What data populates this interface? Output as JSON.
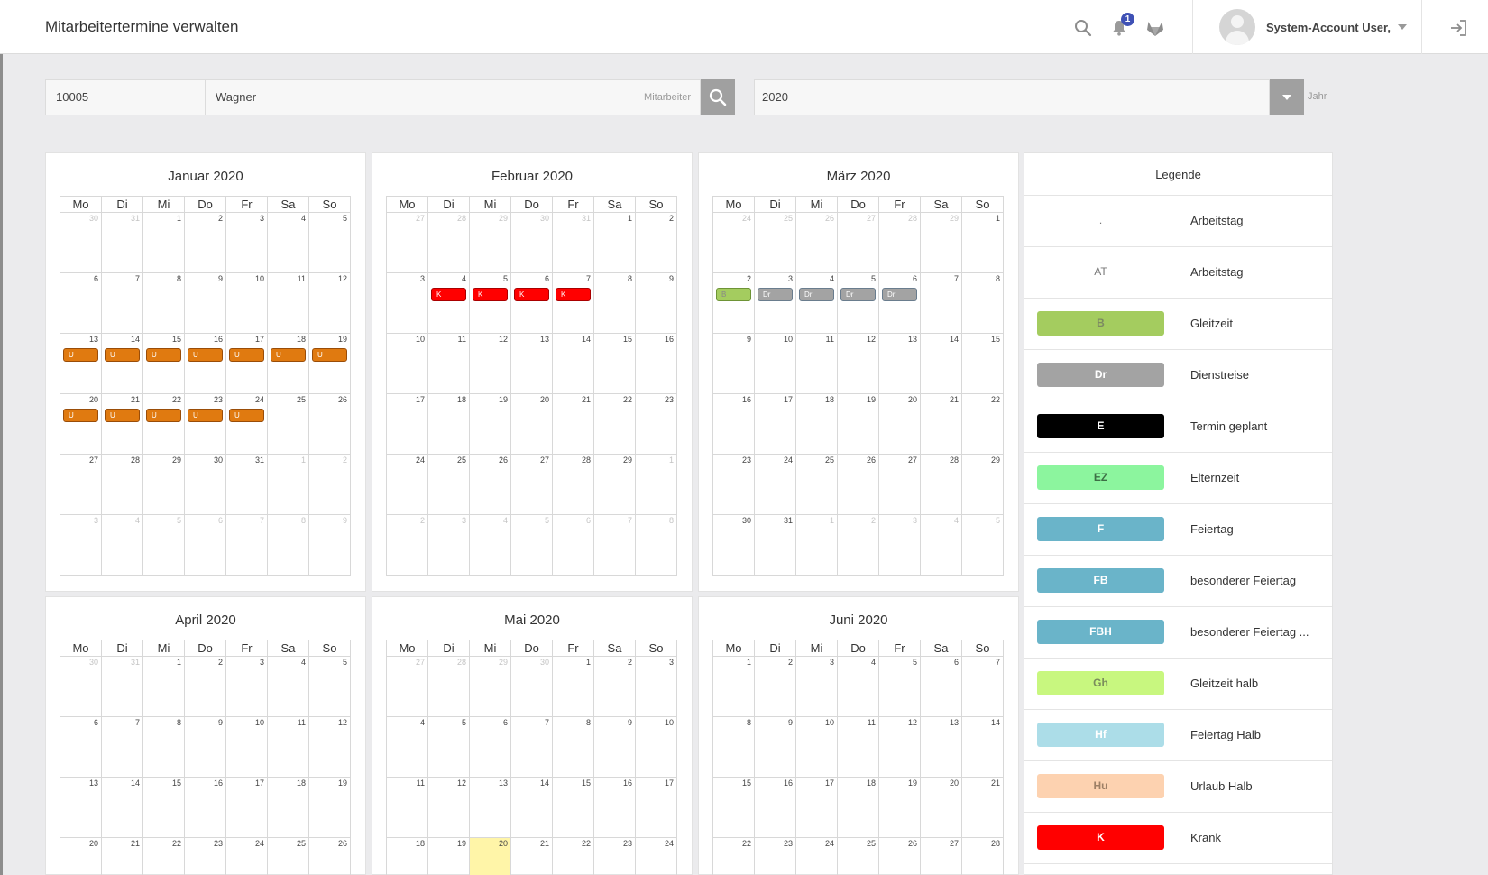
{
  "header": {
    "title": "Mitarbeitertermine verwalten",
    "notification_count": "1",
    "user_name": "System-Account User,"
  },
  "icons": {
    "search": "search-icon",
    "bell": "bell-icon",
    "brand": "fox-logo-icon",
    "user_menu_caret": "chevron-down-icon",
    "logout": "logout-icon"
  },
  "filter": {
    "employee_id": "10005",
    "employee_name": "Wagner",
    "employee_hint": "Mitarbeiter",
    "year": "2020",
    "year_hint": "Jahr"
  },
  "weekdays": [
    "Mo",
    "Di",
    "Mi",
    "Do",
    "Fr",
    "Sa",
    "So"
  ],
  "colors": {
    "accent_badge": "#3f51b5",
    "U": "#e07a10",
    "K": "#ff0000",
    "B": "#a4cc5f",
    "Dr": "#a3a3a3",
    "today": "#fff5a8"
  },
  "months": [
    {
      "title": "Januar 2020",
      "weeks": [
        [
          {
            "d": "30",
            "o": true
          },
          {
            "d": "31",
            "o": true
          },
          {
            "d": "1"
          },
          {
            "d": "2"
          },
          {
            "d": "3"
          },
          {
            "d": "4"
          },
          {
            "d": "5"
          }
        ],
        [
          {
            "d": "6"
          },
          {
            "d": "7"
          },
          {
            "d": "8"
          },
          {
            "d": "9"
          },
          {
            "d": "10"
          },
          {
            "d": "11"
          },
          {
            "d": "12"
          }
        ],
        [
          {
            "d": "13",
            "e": "U"
          },
          {
            "d": "14",
            "e": "U"
          },
          {
            "d": "15",
            "e": "U"
          },
          {
            "d": "16",
            "e": "U"
          },
          {
            "d": "17",
            "e": "U"
          },
          {
            "d": "18",
            "e": "U"
          },
          {
            "d": "19",
            "e": "U"
          }
        ],
        [
          {
            "d": "20",
            "e": "U"
          },
          {
            "d": "21",
            "e": "U"
          },
          {
            "d": "22",
            "e": "U"
          },
          {
            "d": "23",
            "e": "U"
          },
          {
            "d": "24",
            "e": "U"
          },
          {
            "d": "25"
          },
          {
            "d": "26"
          }
        ],
        [
          {
            "d": "27"
          },
          {
            "d": "28"
          },
          {
            "d": "29"
          },
          {
            "d": "30"
          },
          {
            "d": "31"
          },
          {
            "d": "1",
            "o": true
          },
          {
            "d": "2",
            "o": true
          }
        ],
        [
          {
            "d": "3",
            "o": true
          },
          {
            "d": "4",
            "o": true
          },
          {
            "d": "5",
            "o": true
          },
          {
            "d": "6",
            "o": true
          },
          {
            "d": "7",
            "o": true
          },
          {
            "d": "8",
            "o": true
          },
          {
            "d": "9",
            "o": true
          }
        ]
      ]
    },
    {
      "title": "Februar 2020",
      "weeks": [
        [
          {
            "d": "27",
            "o": true
          },
          {
            "d": "28",
            "o": true
          },
          {
            "d": "29",
            "o": true
          },
          {
            "d": "30",
            "o": true
          },
          {
            "d": "31",
            "o": true
          },
          {
            "d": "1"
          },
          {
            "d": "2"
          }
        ],
        [
          {
            "d": "3"
          },
          {
            "d": "4",
            "e": "K"
          },
          {
            "d": "5",
            "e": "K"
          },
          {
            "d": "6",
            "e": "K"
          },
          {
            "d": "7",
            "e": "K"
          },
          {
            "d": "8"
          },
          {
            "d": "9"
          }
        ],
        [
          {
            "d": "10"
          },
          {
            "d": "11"
          },
          {
            "d": "12"
          },
          {
            "d": "13"
          },
          {
            "d": "14"
          },
          {
            "d": "15"
          },
          {
            "d": "16"
          }
        ],
        [
          {
            "d": "17"
          },
          {
            "d": "18"
          },
          {
            "d": "19"
          },
          {
            "d": "20"
          },
          {
            "d": "21"
          },
          {
            "d": "22"
          },
          {
            "d": "23"
          }
        ],
        [
          {
            "d": "24"
          },
          {
            "d": "25"
          },
          {
            "d": "26"
          },
          {
            "d": "27"
          },
          {
            "d": "28"
          },
          {
            "d": "29"
          },
          {
            "d": "1",
            "o": true
          }
        ],
        [
          {
            "d": "2",
            "o": true
          },
          {
            "d": "3",
            "o": true
          },
          {
            "d": "4",
            "o": true
          },
          {
            "d": "5",
            "o": true
          },
          {
            "d": "6",
            "o": true
          },
          {
            "d": "7",
            "o": true
          },
          {
            "d": "8",
            "o": true
          }
        ]
      ]
    },
    {
      "title": "März 2020",
      "weeks": [
        [
          {
            "d": "24",
            "o": true
          },
          {
            "d": "25",
            "o": true
          },
          {
            "d": "26",
            "o": true
          },
          {
            "d": "27",
            "o": true
          },
          {
            "d": "28",
            "o": true
          },
          {
            "d": "29",
            "o": true
          },
          {
            "d": "1"
          }
        ],
        [
          {
            "d": "2",
            "e": "B"
          },
          {
            "d": "3",
            "e": "Dr"
          },
          {
            "d": "4",
            "e": "Dr"
          },
          {
            "d": "5",
            "e": "Dr"
          },
          {
            "d": "6",
            "e": "Dr"
          },
          {
            "d": "7"
          },
          {
            "d": "8"
          }
        ],
        [
          {
            "d": "9"
          },
          {
            "d": "10"
          },
          {
            "d": "11"
          },
          {
            "d": "12"
          },
          {
            "d": "13"
          },
          {
            "d": "14"
          },
          {
            "d": "15"
          }
        ],
        [
          {
            "d": "16"
          },
          {
            "d": "17"
          },
          {
            "d": "18"
          },
          {
            "d": "19"
          },
          {
            "d": "20"
          },
          {
            "d": "21"
          },
          {
            "d": "22"
          }
        ],
        [
          {
            "d": "23"
          },
          {
            "d": "24"
          },
          {
            "d": "25"
          },
          {
            "d": "26"
          },
          {
            "d": "27"
          },
          {
            "d": "28"
          },
          {
            "d": "29"
          }
        ],
        [
          {
            "d": "30"
          },
          {
            "d": "31"
          },
          {
            "d": "1",
            "o": true
          },
          {
            "d": "2",
            "o": true
          },
          {
            "d": "3",
            "o": true
          },
          {
            "d": "4",
            "o": true
          },
          {
            "d": "5",
            "o": true
          }
        ]
      ]
    },
    {
      "title": "April 2020",
      "weeks": [
        [
          {
            "d": "30",
            "o": true
          },
          {
            "d": "31",
            "o": true
          },
          {
            "d": "1"
          },
          {
            "d": "2"
          },
          {
            "d": "3"
          },
          {
            "d": "4"
          },
          {
            "d": "5"
          }
        ],
        [
          {
            "d": "6"
          },
          {
            "d": "7"
          },
          {
            "d": "8"
          },
          {
            "d": "9"
          },
          {
            "d": "10"
          },
          {
            "d": "11"
          },
          {
            "d": "12"
          }
        ],
        [
          {
            "d": "13"
          },
          {
            "d": "14"
          },
          {
            "d": "15"
          },
          {
            "d": "16"
          },
          {
            "d": "17"
          },
          {
            "d": "18"
          },
          {
            "d": "19"
          }
        ],
        [
          {
            "d": "20"
          },
          {
            "d": "21"
          },
          {
            "d": "22"
          },
          {
            "d": "23"
          },
          {
            "d": "24"
          },
          {
            "d": "25"
          },
          {
            "d": "26"
          }
        ]
      ]
    },
    {
      "title": "Mai 2020",
      "weeks": [
        [
          {
            "d": "27",
            "o": true
          },
          {
            "d": "28",
            "o": true
          },
          {
            "d": "29",
            "o": true
          },
          {
            "d": "30",
            "o": true
          },
          {
            "d": "1"
          },
          {
            "d": "2"
          },
          {
            "d": "3"
          }
        ],
        [
          {
            "d": "4"
          },
          {
            "d": "5"
          },
          {
            "d": "6"
          },
          {
            "d": "7"
          },
          {
            "d": "8"
          },
          {
            "d": "9"
          },
          {
            "d": "10"
          }
        ],
        [
          {
            "d": "11"
          },
          {
            "d": "12"
          },
          {
            "d": "13"
          },
          {
            "d": "14"
          },
          {
            "d": "15"
          },
          {
            "d": "16"
          },
          {
            "d": "17"
          }
        ],
        [
          {
            "d": "18"
          },
          {
            "d": "19"
          },
          {
            "d": "20",
            "t": true
          },
          {
            "d": "21"
          },
          {
            "d": "22"
          },
          {
            "d": "23"
          },
          {
            "d": "24"
          }
        ]
      ]
    },
    {
      "title": "Juni 2020",
      "weeks": [
        [
          {
            "d": "1"
          },
          {
            "d": "2"
          },
          {
            "d": "3"
          },
          {
            "d": "4"
          },
          {
            "d": "5"
          },
          {
            "d": "6"
          },
          {
            "d": "7"
          }
        ],
        [
          {
            "d": "8"
          },
          {
            "d": "9"
          },
          {
            "d": "10"
          },
          {
            "d": "11"
          },
          {
            "d": "12"
          },
          {
            "d": "13"
          },
          {
            "d": "14"
          }
        ],
        [
          {
            "d": "15"
          },
          {
            "d": "16"
          },
          {
            "d": "17"
          },
          {
            "d": "18"
          },
          {
            "d": "19"
          },
          {
            "d": "20"
          },
          {
            "d": "21"
          }
        ],
        [
          {
            "d": "22"
          },
          {
            "d": "23"
          },
          {
            "d": "24"
          },
          {
            "d": "25"
          },
          {
            "d": "26"
          },
          {
            "d": "27"
          },
          {
            "d": "28"
          }
        ]
      ]
    }
  ],
  "legend": {
    "title": "Legende",
    "items": [
      {
        "code": ".",
        "label": "Arbeitstag",
        "bg": "",
        "fg": "#777",
        "plain": true
      },
      {
        "code": "AT",
        "label": "Arbeitstag",
        "bg": "",
        "fg": "#777",
        "plain": true
      },
      {
        "code": "B",
        "label": "Gleitzeit",
        "bg": "#a4cc5f",
        "fg": "#7c8a62"
      },
      {
        "code": "Dr",
        "label": "Dienstreise",
        "bg": "#a3a3a3",
        "fg": "#ffffff"
      },
      {
        "code": "E",
        "label": "Termin geplant",
        "bg": "#000000",
        "fg": "#ffffff"
      },
      {
        "code": "EZ",
        "label": "Elternzeit",
        "bg": "#8cf59e",
        "fg": "#3d6e45"
      },
      {
        "code": "F",
        "label": "Feiertag",
        "bg": "#6ab4c9",
        "fg": "#ffffff"
      },
      {
        "code": "FB",
        "label": "besonderer Feiertag",
        "bg": "#6ab4c9",
        "fg": "#ffffff"
      },
      {
        "code": "FBH",
        "label": "besonderer Feiertag ...",
        "bg": "#6ab4c9",
        "fg": "#ffffff"
      },
      {
        "code": "Gh",
        "label": "Gleitzeit halb",
        "bg": "#c8f77f",
        "fg": "#7a8c5c"
      },
      {
        "code": "Hf",
        "label": "Feiertag Halb",
        "bg": "#acdde8",
        "fg": "#ffffff"
      },
      {
        "code": "Hu",
        "label": "Urlaub Halb",
        "bg": "#fdd2b0",
        "fg": "#9e8066"
      },
      {
        "code": "K",
        "label": "Krank",
        "bg": "#ff0000",
        "fg": "#ffffff"
      }
    ]
  }
}
